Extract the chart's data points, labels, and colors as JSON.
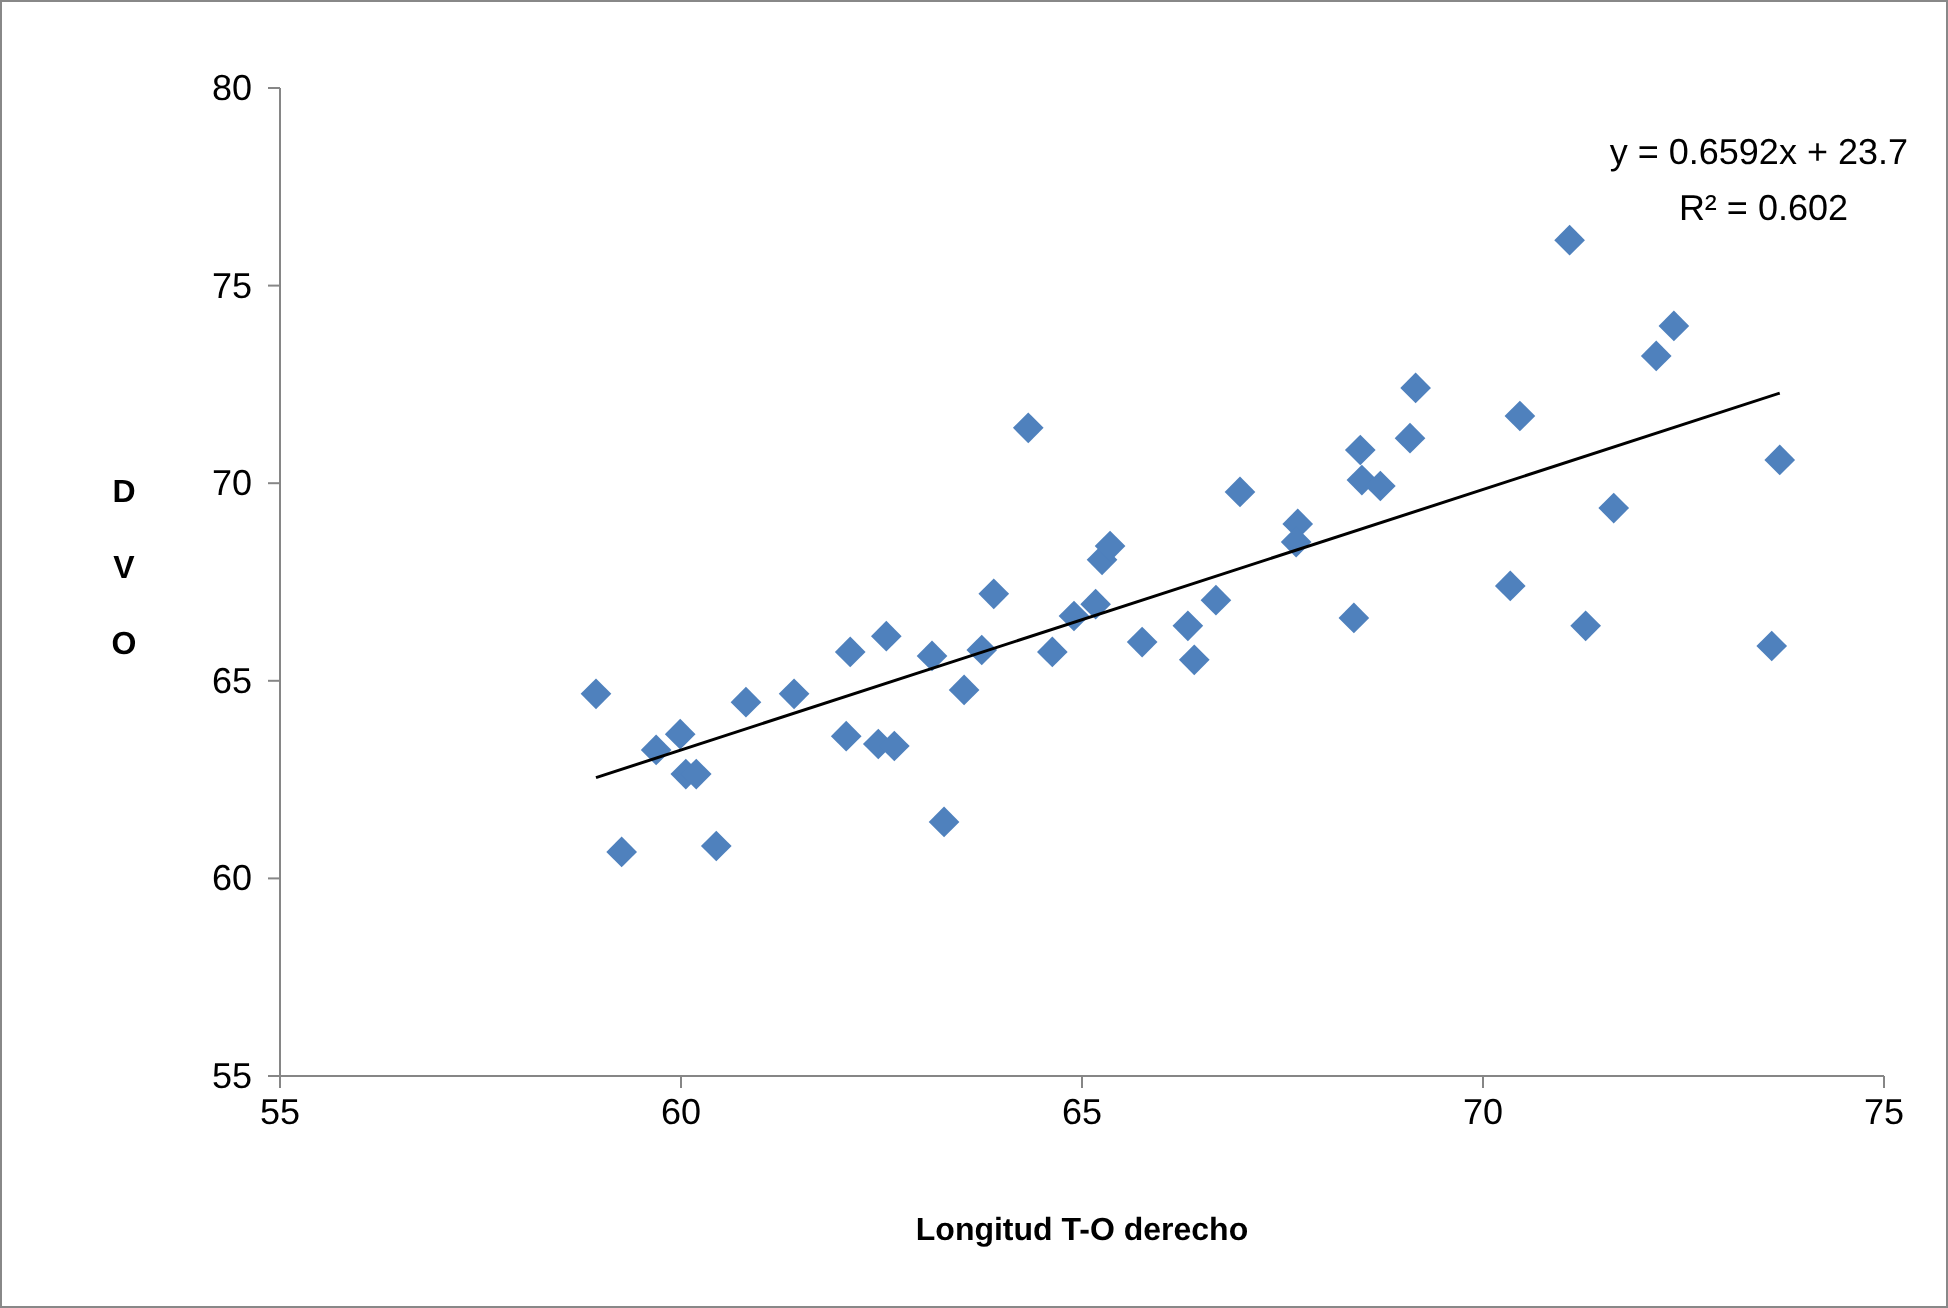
{
  "chart_data": {
    "type": "scatter",
    "xlabel": "Longitud T-O derecho",
    "ylabel": "DVO",
    "xlim": [
      55,
      75
    ],
    "xticks": [
      55,
      60,
      65,
      70,
      75
    ],
    "ylim": [
      55,
      80
    ],
    "yticks": [
      55,
      60,
      65,
      70,
      75,
      80
    ],
    "marker": "diamond",
    "grid": false,
    "annotations": [
      "y = 0.6592x + 23.7",
      "R² = 0.602"
    ],
    "series": [
      {
        "color": "#4f81bd",
        "x": [
          58.94,
          59.26,
          59.69,
          59.99,
          60.06,
          60.19,
          60.44,
          60.81,
          61.41,
          62.11,
          62.06,
          62.46,
          62.66,
          62.56,
          63.13,
          63.28,
          63.53,
          63.75,
          63.9,
          64.33,
          64.63,
          64.9,
          65.17,
          65.25,
          65.35,
          65.75,
          66.32,
          66.4,
          66.67,
          66.97,
          67.69,
          67.67,
          68.39,
          68.47,
          68.49,
          68.72,
          69.09,
          69.16,
          70.34,
          70.46,
          71.08,
          71.28,
          71.63,
          72.16,
          72.38,
          73.6,
          73.7
        ],
        "values": [
          64.67,
          60.67,
          63.25,
          63.65,
          62.64,
          62.64,
          60.82,
          64.46,
          64.67,
          65.73,
          63.6,
          63.4,
          63.35,
          66.13,
          65.63,
          61.43,
          64.77,
          65.78,
          67.2,
          71.4,
          65.73,
          66.64,
          66.94,
          68.06,
          68.41,
          65.98,
          66.39,
          65.53,
          67.04,
          69.78,
          68.97,
          68.51,
          66.59,
          70.84,
          70.08,
          69.93,
          71.14,
          72.41,
          67.4,
          71.7,
          76.15,
          66.39,
          69.37,
          73.22,
          73.98,
          65.88,
          70.59
        ]
      },
      {
        "type": "line",
        "color": "#000000",
        "line_style": "solid",
        "marker": "none",
        "x": [
          58.94,
          73.7
        ],
        "values": [
          62.55,
          72.28
        ]
      }
    ]
  }
}
